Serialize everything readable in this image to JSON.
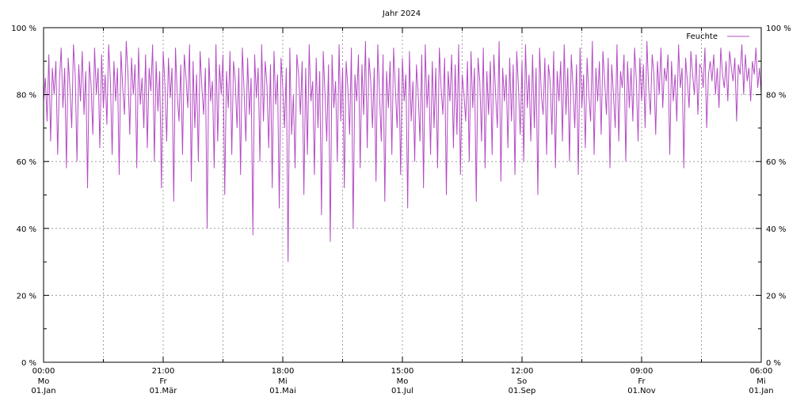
{
  "chart_data": {
    "type": "line",
    "title": "Jahr 2024",
    "ylim": [
      0,
      100
    ],
    "y_ticks": [
      {
        "value": 0,
        "label": "0 %"
      },
      {
        "value": 20,
        "label": "20 %"
      },
      {
        "value": 40,
        "label": "40 %"
      },
      {
        "value": 60,
        "label": "60 %"
      },
      {
        "value": 80,
        "label": "80 %"
      },
      {
        "value": 100,
        "label": "100 %"
      }
    ],
    "x_ticks": [
      {
        "time": "00:00",
        "weekday": "Mo",
        "date": "01.Jan"
      },
      {
        "time": "21:00",
        "weekday": "Fr",
        "date": "01.Mär"
      },
      {
        "time": "18:00",
        "weekday": "Mi",
        "date": "01.Mai"
      },
      {
        "time": "15:00",
        "weekday": "Mo",
        "date": "01.Jul"
      },
      {
        "time": "12:00",
        "weekday": "So",
        "date": "01.Sep"
      },
      {
        "time": "09:00",
        "weekday": "Fr",
        "date": "01.Nov"
      },
      {
        "time": "06:00",
        "weekday": "Mi",
        "date": "01.Jan"
      }
    ],
    "grid": true,
    "legend_position": "top-right",
    "series": [
      {
        "name": "Feuchte",
        "color": "#b44cc4",
        "x_start": "2024-01-01",
        "x_end": "2025-01-01",
        "values": [
          78,
          85,
          72,
          92,
          66,
          88,
          80,
          90,
          62,
          84,
          94,
          76,
          88,
          58,
          91,
          82,
          70,
          95,
          86,
          60,
          89,
          78,
          93,
          74,
          87,
          52,
          90,
          83,
          68,
          94,
          80,
          88,
          64,
          92,
          76,
          86,
          71,
          95,
          84,
          62,
          90,
          78,
          88,
          56,
          93,
          82,
          74,
          96,
          86,
          68,
          91,
          80,
          89,
          58,
          94,
          77,
          85,
          70,
          92,
          64,
          88,
          81,
          95,
          60,
          90,
          75,
          87,
          52,
          93,
          83,
          66,
          91,
          79,
          88,
          48,
          94,
          80,
          72,
          89,
          62,
          92,
          85,
          76,
          95,
          54,
          90,
          70,
          86,
          60,
          93,
          82,
          74,
          88,
          40,
          91,
          78,
          84,
          58,
          95,
          66,
          89,
          80,
          92,
          50,
          87,
          76,
          93,
          62,
          90,
          84,
          70,
          88,
          56,
          94,
          81,
          66,
          91,
          74,
          85,
          38,
          92,
          79,
          88,
          60,
          95,
          72,
          90,
          83,
          64,
          89,
          52,
          93,
          77,
          86,
          46,
          91,
          82,
          70,
          88,
          30,
          94,
          68,
          80,
          58,
          92,
          86,
          74,
          90,
          50,
          88,
          62,
          95,
          78,
          84,
          56,
          91,
          70,
          87,
          44,
          93,
          80,
          66,
          89,
          36,
          92,
          76,
          84,
          60,
          95,
          72,
          88,
          52,
          90,
          82,
          68,
          94,
          40,
          86,
          78,
          92,
          58,
          89,
          74,
          96,
          64,
          91,
          84,
          70,
          88,
          54,
          95,
          80,
          66,
          92,
          48,
          87,
          76,
          90,
          62,
          94,
          82,
          70,
          88,
          56,
          91,
          78,
          86,
          46,
          93,
          72,
          84,
          60,
          89,
          80,
          66,
          92,
          52,
          95,
          76,
          86,
          62,
          90,
          70,
          88,
          58,
          94,
          82,
          74,
          91,
          50,
          87,
          78,
          92,
          64,
          89,
          68,
          95,
          56,
          86,
          80,
          72,
          90,
          60,
          93,
          76,
          88,
          48,
          91,
          84,
          66,
          94,
          58,
          87,
          74,
          90,
          62,
          92,
          80,
          70,
          96,
          54,
          88,
          78,
          86,
          64,
          91,
          72,
          89,
          56,
          93,
          82,
          68,
          90,
          60,
          95,
          76,
          86,
          66,
          92,
          70,
          88,
          50,
          94,
          80,
          74,
          91,
          62,
          89,
          84,
          68,
          93,
          58,
          87,
          78,
          90,
          66,
          95,
          74,
          88,
          60,
          92,
          82,
          70,
          89,
          56,
          94,
          76,
          86,
          64,
          91,
          80,
          72,
          96,
          62,
          88,
          78,
          90,
          68,
          93,
          84,
          74,
          91,
          58,
          89,
          80,
          70,
          95,
          66,
          87,
          82,
          92,
          60,
          90,
          76,
          88,
          72,
          94,
          84,
          66,
          91,
          78,
          89,
          70,
          96,
          82,
          74,
          92,
          86,
          68,
          90,
          80,
          94,
          76,
          88,
          84,
          92,
          62,
          90,
          78,
          86,
          72,
          95,
          82,
          88,
          58,
          91,
          84,
          76,
          93,
          86,
          80,
          92,
          74,
          89,
          88,
          82,
          94,
          70,
          86,
          90,
          84,
          92,
          80,
          88,
          76,
          94,
          86,
          82,
          90,
          78,
          93,
          88,
          84,
          91,
          72,
          89,
          86,
          95,
          80,
          92,
          84,
          88,
          78,
          90,
          86,
          94,
          82,
          88,
          80
        ]
      }
    ]
  }
}
